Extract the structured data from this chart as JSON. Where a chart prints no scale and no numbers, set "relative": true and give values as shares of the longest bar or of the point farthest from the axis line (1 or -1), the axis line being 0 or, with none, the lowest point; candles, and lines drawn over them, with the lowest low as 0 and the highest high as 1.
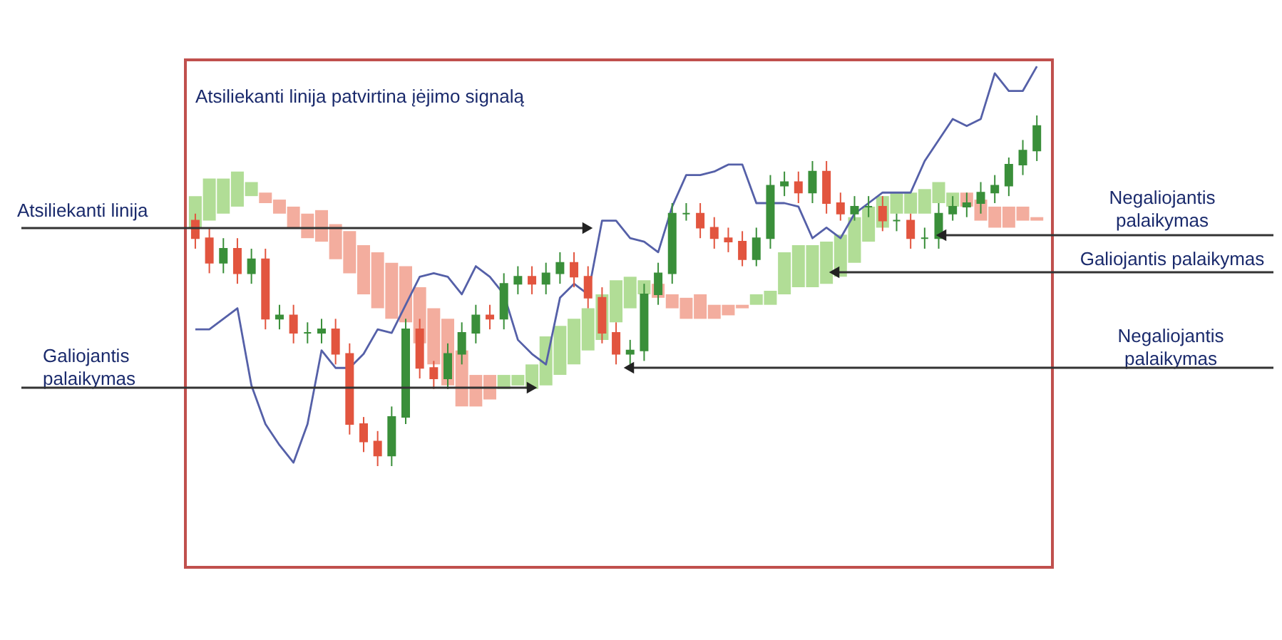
{
  "chart_data": {
    "type": "candlestick",
    "relative": true,
    "tick_labels": false,
    "grid": false,
    "categories": [
      null,
      null,
      null,
      null,
      null,
      null,
      null,
      null,
      null,
      null,
      null,
      null,
      null,
      null,
      null,
      null,
      null,
      null,
      null,
      null,
      null,
      null,
      null,
      null,
      null,
      null,
      null,
      null,
      null,
      null,
      null,
      null,
      null,
      null,
      null,
      null,
      null,
      null,
      null,
      null,
      null,
      null,
      null,
      null,
      null,
      null,
      null,
      null,
      null,
      null,
      null,
      null,
      null,
      null,
      null,
      null,
      null,
      null,
      null,
      null,
      null
    ],
    "ohlc": [
      [
        0.7,
        0.72,
        0.62,
        0.65
      ],
      [
        0.65,
        0.68,
        0.55,
        0.58
      ],
      [
        0.58,
        0.65,
        0.55,
        0.62
      ],
      [
        0.62,
        0.65,
        0.52,
        0.55
      ],
      [
        0.55,
        0.62,
        0.52,
        0.59
      ],
      [
        0.59,
        0.62,
        0.39,
        0.42
      ],
      [
        0.42,
        0.46,
        0.39,
        0.43
      ],
      [
        0.43,
        0.46,
        0.35,
        0.38
      ],
      [
        0.38,
        0.41,
        0.35,
        0.38
      ],
      [
        0.38,
        0.42,
        0.35,
        0.39
      ],
      [
        0.39,
        0.42,
        0.29,
        0.32
      ],
      [
        0.32,
        0.35,
        0.09,
        0.12
      ],
      [
        0.12,
        0.14,
        0.04,
        0.07
      ],
      [
        0.07,
        0.1,
        0.0,
        0.03
      ],
      [
        0.03,
        0.17,
        0.0,
        0.14
      ],
      [
        0.14,
        0.42,
        0.12,
        0.39
      ],
      [
        0.39,
        0.42,
        0.25,
        0.28
      ],
      [
        0.28,
        0.3,
        0.22,
        0.25
      ],
      [
        0.25,
        0.35,
        0.22,
        0.32
      ],
      [
        0.32,
        0.41,
        0.29,
        0.38
      ],
      [
        0.38,
        0.46,
        0.35,
        0.43
      ],
      [
        0.43,
        0.46,
        0.39,
        0.42
      ],
      [
        0.42,
        0.55,
        0.39,
        0.52
      ],
      [
        0.52,
        0.57,
        0.49,
        0.54
      ],
      [
        0.54,
        0.57,
        0.49,
        0.52
      ],
      [
        0.52,
        0.58,
        0.49,
        0.55
      ],
      [
        0.55,
        0.61,
        0.52,
        0.58
      ],
      [
        0.58,
        0.61,
        0.51,
        0.54
      ],
      [
        0.54,
        0.57,
        0.45,
        0.48
      ],
      [
        0.48,
        0.51,
        0.35,
        0.38
      ],
      [
        0.38,
        0.41,
        0.29,
        0.32
      ],
      [
        0.32,
        0.36,
        0.29,
        0.33
      ],
      [
        0.33,
        0.52,
        0.3,
        0.49
      ],
      [
        0.49,
        0.58,
        0.46,
        0.55
      ],
      [
        0.55,
        0.75,
        0.52,
        0.72
      ],
      [
        0.72,
        0.75,
        0.7,
        0.72
      ],
      [
        0.72,
        0.75,
        0.65,
        0.68
      ],
      [
        0.68,
        0.71,
        0.62,
        0.65
      ],
      [
        0.65,
        0.68,
        0.61,
        0.64
      ],
      [
        0.64,
        0.67,
        0.57,
        0.59
      ],
      [
        0.59,
        0.68,
        0.57,
        0.65
      ],
      [
        0.65,
        0.83,
        0.62,
        0.8
      ],
      [
        0.8,
        0.84,
        0.77,
        0.81
      ],
      [
        0.81,
        0.84,
        0.75,
        0.78
      ],
      [
        0.78,
        0.87,
        0.75,
        0.84
      ],
      [
        0.84,
        0.87,
        0.72,
        0.75
      ],
      [
        0.75,
        0.78,
        0.7,
        0.72
      ],
      [
        0.72,
        0.77,
        0.7,
        0.74
      ],
      [
        0.74,
        0.77,
        0.71,
        0.74
      ],
      [
        0.74,
        0.77,
        0.67,
        0.7
      ],
      [
        0.7,
        0.72,
        0.67,
        0.7
      ],
      [
        0.7,
        0.72,
        0.62,
        0.65
      ],
      [
        0.65,
        0.68,
        0.62,
        0.65
      ],
      [
        0.65,
        0.75,
        0.62,
        0.72
      ],
      [
        0.72,
        0.77,
        0.7,
        0.74
      ],
      [
        0.74,
        0.78,
        0.71,
        0.75
      ],
      [
        0.75,
        0.81,
        0.72,
        0.78
      ],
      [
        0.78,
        0.83,
        0.75,
        0.8
      ],
      [
        0.8,
        0.88,
        0.77,
        0.86
      ],
      [
        0.86,
        0.93,
        0.83,
        0.9
      ],
      [
        0.9,
        1.0,
        0.87,
        0.97
      ]
    ],
    "colors": [
      "#e2553f",
      "#e2553f",
      "#3a8f3a",
      "#e2553f",
      "#3a8f3a",
      "#e2553f",
      "#3a8f3a",
      "#e2553f",
      "#3a8f3a",
      "#3a8f3a",
      "#e2553f",
      "#e2553f",
      "#e2553f",
      "#e2553f",
      "#3a8f3a",
      "#3a8f3a",
      "#e2553f",
      "#e2553f",
      "#3a8f3a",
      "#3a8f3a",
      "#3a8f3a",
      "#e2553f",
      "#3a8f3a",
      "#3a8f3a",
      "#e2553f",
      "#3a8f3a",
      "#3a8f3a",
      "#e2553f",
      "#e2553f",
      "#e2553f",
      "#e2553f",
      "#3a8f3a",
      "#3a8f3a",
      "#3a8f3a",
      "#3a8f3a",
      "#3a8f3a",
      "#e2553f",
      "#e2553f",
      "#e2553f",
      "#e2553f",
      "#3a8f3a",
      "#3a8f3a",
      "#3a8f3a",
      "#e2553f",
      "#3a8f3a",
      "#e2553f",
      "#e2553f",
      "#3a8f3a",
      "#3a8f3a",
      "#e2553f",
      "#3a8f3a",
      "#e2553f",
      "#3a8f3a",
      "#3a8f3a",
      "#3a8f3a",
      "#3a8f3a",
      "#3a8f3a",
      "#3a8f3a",
      "#3a8f3a",
      "#3a8f3a",
      "#3a8f3a"
    ],
    "series": [
      {
        "type": "bar",
        "values": [
          0.09,
          0.12,
          0.1,
          0.1,
          0.04,
          0.03,
          0.04,
          0.06,
          0.07,
          0.09,
          0.1,
          0.12,
          0.14,
          0.16,
          0.16,
          0.16,
          0.16,
          0.16,
          0.19,
          0.16,
          0.09,
          0.07,
          0.04,
          0.03,
          0.07,
          0.14,
          0.14,
          0.13,
          0.12,
          0.13,
          0.12,
          0.09,
          0.04,
          0.04,
          0.04,
          0.06,
          0.07,
          0.04,
          0.03,
          0.01,
          0.03,
          0.04,
          0.12,
          0.12,
          0.12,
          0.12,
          0.12,
          0.13,
          0.1,
          0.09,
          0.06,
          0.06,
          0.07,
          0.06,
          0.04,
          0.04,
          0.06,
          0.06,
          0.06,
          0.04,
          0.01
        ],
        "base": [
          0.68,
          0.7,
          0.72,
          0.74,
          0.77,
          0.75,
          0.72,
          0.68,
          0.65,
          0.64,
          0.59,
          0.55,
          0.49,
          0.45,
          0.42,
          0.41,
          0.35,
          0.29,
          0.23,
          0.17,
          0.17,
          0.19,
          0.22,
          0.23,
          0.22,
          0.23,
          0.26,
          0.29,
          0.33,
          0.36,
          0.41,
          0.45,
          0.49,
          0.48,
          0.45,
          0.42,
          0.42,
          0.42,
          0.43,
          0.45,
          0.46,
          0.46,
          0.49,
          0.51,
          0.51,
          0.52,
          0.54,
          0.58,
          0.64,
          0.68,
          0.72,
          0.72,
          0.72,
          0.75,
          0.74,
          0.74,
          0.7,
          0.68,
          0.68,
          0.7,
          0.7
        ],
        "colors": [
          "#a9d98b",
          "#a9d98b",
          "#a9d98b",
          "#a9d98b",
          "#a9d98b",
          "#f2a493",
          "#f2a493",
          "#f2a493",
          "#f2a493",
          "#f2a493",
          "#f2a493",
          "#f2a493",
          "#f2a493",
          "#f2a493",
          "#f2a493",
          "#f2a493",
          "#f2a493",
          "#f2a493",
          "#f2a493",
          "#f2a493",
          "#f2a493",
          "#f2a493",
          "#a9d98b",
          "#a9d98b",
          "#a9d98b",
          "#a9d98b",
          "#a9d98b",
          "#a9d98b",
          "#a9d98b",
          "#a9d98b",
          "#a9d98b",
          "#a9d98b",
          "#a9d98b",
          "#f2a493",
          "#f2a493",
          "#f2a493",
          "#f2a493",
          "#f2a493",
          "#f2a493",
          "#f2a493",
          "#a9d98b",
          "#a9d98b",
          "#a9d98b",
          "#a9d98b",
          "#a9d98b",
          "#a9d98b",
          "#a9d98b",
          "#a9d98b",
          "#a9d98b",
          "#a9d98b",
          "#a9d98b",
          "#a9d98b",
          "#a9d98b",
          "#a9d98b",
          "#a9d98b",
          "#f2a493",
          "#f2a493",
          "#f2a493",
          "#f2a493",
          "#f2a493",
          "#f2a493"
        ]
      },
      {
        "type": "line",
        "color": "#5560a8",
        "values": [
          0.39,
          0.39,
          0.42,
          0.45,
          0.23,
          0.12,
          0.06,
          0.01,
          0.12,
          0.33,
          0.28,
          0.28,
          0.32,
          0.39,
          0.38,
          0.46,
          0.54,
          0.55,
          0.54,
          0.49,
          0.57,
          0.54,
          0.49,
          0.36,
          0.32,
          0.29,
          0.48,
          0.52,
          0.49,
          0.7,
          0.7,
          0.65,
          0.64,
          0.61,
          0.74,
          0.83,
          0.83,
          0.84,
          0.86,
          0.86,
          0.75,
          0.75,
          0.75,
          0.74,
          0.65,
          0.68,
          0.65,
          0.72,
          0.75,
          0.78,
          0.78,
          0.78,
          0.87,
          0.93,
          0.99,
          0.97,
          0.99,
          1.12,
          1.07,
          1.07,
          1.14
        ]
      }
    ],
    "annotations": [
      "Atsiliekanti linija patvirtina įėjimo signalą",
      "Atsiliekanti linija",
      "Galiojantis\npalaikymas",
      "Negaliojantis\npalaikymas",
      "Galiojantis palaikymas",
      "Negaliojantis\npalaikymas"
    ]
  }
}
